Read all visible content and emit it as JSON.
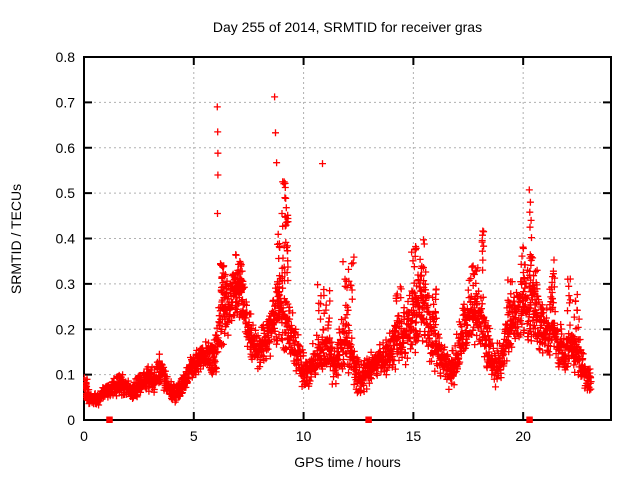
{
  "chart_data": {
    "type": "scatter",
    "title": "Day 255 of 2014, SRMTID for receiver gras",
    "xlabel": "GPS time / hours",
    "ylabel": "SRMTID / TECUs",
    "xlim": [
      0,
      24
    ],
    "ylim": [
      0,
      0.8
    ],
    "xticks": [
      0,
      5,
      10,
      15,
      20
    ],
    "xtick_labels": [
      "0",
      "5",
      "10",
      "15",
      "20"
    ],
    "yticks": [
      0,
      0.1,
      0.2,
      0.3,
      0.4,
      0.5,
      0.6,
      0.7,
      0.8
    ],
    "ytick_labels": [
      "0",
      "0.1",
      "0.2",
      "0.3",
      "0.4",
      "0.5",
      "0.6",
      "0.7",
      "0.8"
    ],
    "grid": true,
    "legend": "none",
    "marker": "+",
    "marker_color": "#ff0000",
    "grid_color": "#b0b0b0",
    "border_color": "#000000",
    "points_per_hour": 110,
    "data_start_hour": 0.02,
    "data_end_hour": 23.1,
    "band_envelope": [
      [
        0.0,
        0.05,
        0.1
      ],
      [
        0.25,
        0.03,
        0.07
      ],
      [
        0.6,
        0.03,
        0.06
      ],
      [
        1.0,
        0.04,
        0.08
      ],
      [
        1.4,
        0.05,
        0.1
      ],
      [
        1.8,
        0.05,
        0.11
      ],
      [
        2.1,
        0.04,
        0.08
      ],
      [
        2.5,
        0.05,
        0.1
      ],
      [
        2.8,
        0.06,
        0.12
      ],
      [
        3.2,
        0.06,
        0.12
      ],
      [
        3.5,
        0.07,
        0.14
      ],
      [
        3.8,
        0.05,
        0.1
      ],
      [
        4.2,
        0.03,
        0.08
      ],
      [
        4.5,
        0.05,
        0.1
      ],
      [
        4.8,
        0.08,
        0.14
      ],
      [
        5.2,
        0.1,
        0.16
      ],
      [
        5.6,
        0.11,
        0.18
      ],
      [
        5.9,
        0.09,
        0.17
      ],
      [
        6.1,
        0.1,
        0.26
      ],
      [
        6.3,
        0.15,
        0.33
      ],
      [
        6.6,
        0.18,
        0.32
      ],
      [
        6.9,
        0.22,
        0.35
      ],
      [
        7.2,
        0.2,
        0.35
      ],
      [
        7.4,
        0.15,
        0.28
      ],
      [
        7.7,
        0.12,
        0.22
      ],
      [
        8.0,
        0.1,
        0.2
      ],
      [
        8.3,
        0.12,
        0.24
      ],
      [
        8.6,
        0.14,
        0.28
      ],
      [
        8.85,
        0.15,
        0.36
      ],
      [
        9.1,
        0.14,
        0.32
      ],
      [
        9.35,
        0.12,
        0.28
      ],
      [
        9.6,
        0.1,
        0.22
      ],
      [
        9.9,
        0.07,
        0.16
      ],
      [
        10.2,
        0.06,
        0.14
      ],
      [
        10.5,
        0.08,
        0.18
      ],
      [
        10.8,
        0.1,
        0.22
      ],
      [
        11.1,
        0.1,
        0.24
      ],
      [
        11.4,
        0.06,
        0.18
      ],
      [
        11.7,
        0.08,
        0.22
      ],
      [
        11.95,
        0.1,
        0.28
      ],
      [
        12.2,
        0.08,
        0.2
      ],
      [
        12.5,
        0.04,
        0.14
      ],
      [
        12.8,
        0.06,
        0.14
      ],
      [
        13.1,
        0.08,
        0.16
      ],
      [
        13.5,
        0.09,
        0.17
      ],
      [
        13.9,
        0.1,
        0.19
      ],
      [
        14.2,
        0.11,
        0.24
      ],
      [
        14.5,
        0.12,
        0.26
      ],
      [
        14.8,
        0.12,
        0.28
      ],
      [
        15.1,
        0.13,
        0.31
      ],
      [
        15.4,
        0.14,
        0.34
      ],
      [
        15.7,
        0.12,
        0.3
      ],
      [
        16.0,
        0.1,
        0.24
      ],
      [
        16.3,
        0.08,
        0.18
      ],
      [
        16.7,
        0.06,
        0.15
      ],
      [
        17.0,
        0.09,
        0.2
      ],
      [
        17.3,
        0.13,
        0.26
      ],
      [
        17.6,
        0.15,
        0.3
      ],
      [
        17.9,
        0.15,
        0.31
      ],
      [
        18.15,
        0.13,
        0.3
      ],
      [
        18.4,
        0.1,
        0.22
      ],
      [
        18.7,
        0.06,
        0.16
      ],
      [
        19.0,
        0.08,
        0.2
      ],
      [
        19.3,
        0.13,
        0.27
      ],
      [
        19.6,
        0.15,
        0.28
      ],
      [
        19.9,
        0.16,
        0.32
      ],
      [
        20.2,
        0.17,
        0.34
      ],
      [
        20.45,
        0.16,
        0.31
      ],
      [
        20.7,
        0.14,
        0.28
      ],
      [
        21.0,
        0.13,
        0.25
      ],
      [
        21.3,
        0.14,
        0.3
      ],
      [
        21.6,
        0.11,
        0.22
      ],
      [
        21.9,
        0.09,
        0.2
      ],
      [
        22.2,
        0.1,
        0.22
      ],
      [
        22.45,
        0.1,
        0.22
      ],
      [
        22.7,
        0.07,
        0.16
      ],
      [
        22.9,
        0.06,
        0.13
      ],
      [
        23.1,
        0.06,
        0.12
      ]
    ],
    "clusters": [
      [
        0.0,
        0.15,
        0.05,
        0.1,
        8
      ],
      [
        3.3,
        3.5,
        0.1,
        0.145,
        6
      ],
      [
        6.2,
        6.5,
        0.26,
        0.345,
        25
      ],
      [
        6.85,
        7.25,
        0.28,
        0.37,
        30
      ],
      [
        8.8,
        8.95,
        0.24,
        0.42,
        18
      ],
      [
        9.0,
        9.3,
        0.3,
        0.46,
        22
      ],
      [
        9.05,
        9.25,
        0.4,
        0.53,
        10
      ],
      [
        10.6,
        11.2,
        0.22,
        0.31,
        14
      ],
      [
        11.75,
        12.3,
        0.26,
        0.36,
        14
      ],
      [
        14.15,
        14.45,
        0.2,
        0.3,
        10
      ],
      [
        14.9,
        15.25,
        0.25,
        0.4,
        18
      ],
      [
        15.3,
        15.6,
        0.28,
        0.4,
        12
      ],
      [
        15.7,
        16.1,
        0.22,
        0.3,
        10
      ],
      [
        17.5,
        18.0,
        0.26,
        0.34,
        14
      ],
      [
        18.05,
        18.25,
        0.33,
        0.42,
        8
      ],
      [
        19.3,
        19.6,
        0.22,
        0.33,
        10
      ],
      [
        19.9,
        20.1,
        0.28,
        0.39,
        10
      ],
      [
        20.2,
        20.5,
        0.28,
        0.38,
        16
      ],
      [
        20.5,
        20.7,
        0.24,
        0.33,
        8
      ],
      [
        21.2,
        21.45,
        0.24,
        0.37,
        12
      ],
      [
        22.0,
        22.2,
        0.24,
        0.33,
        7
      ],
      [
        22.3,
        22.55,
        0.2,
        0.28,
        8
      ]
    ],
    "outliers": [
      [
        6.07,
        0.69
      ],
      [
        6.09,
        0.635
      ],
      [
        6.1,
        0.588
      ],
      [
        6.1,
        0.54
      ],
      [
        6.08,
        0.455
      ],
      [
        8.68,
        0.712
      ],
      [
        8.72,
        0.633
      ],
      [
        8.77,
        0.567
      ],
      [
        9.05,
        0.525
      ],
      [
        9.15,
        0.49
      ],
      [
        10.86,
        0.565
      ],
      [
        18.2,
        0.415
      ],
      [
        20.28,
        0.507
      ],
      [
        20.33,
        0.48
      ],
      [
        20.3,
        0.458
      ],
      [
        20.36,
        0.44
      ],
      [
        20.31,
        0.425
      ],
      [
        20.38,
        0.402
      ]
    ],
    "zero_points": [
      1.15,
      12.95,
      20.28
    ]
  }
}
